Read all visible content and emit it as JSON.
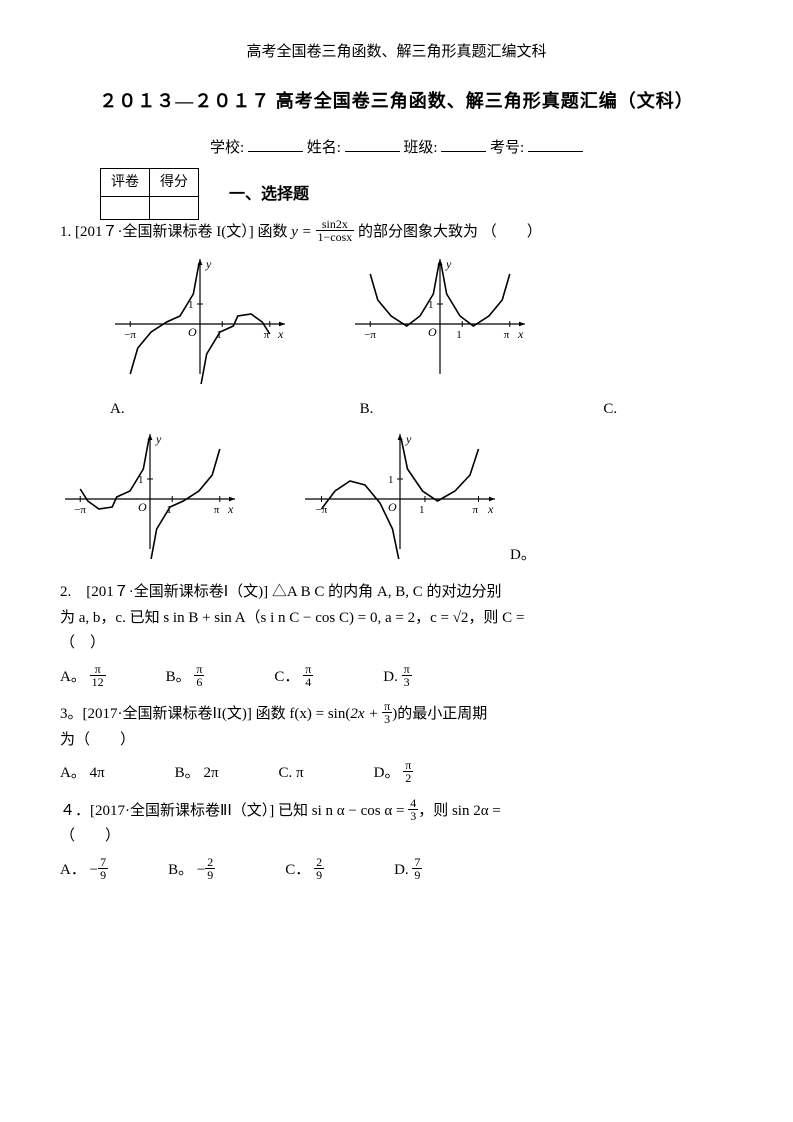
{
  "header": "高考全国卷三角函数、解三角形真题汇编文科",
  "main_title": "２０１３—２０１７ 高考全国卷三角函数、解三角形真题汇编（文科）",
  "info_line": {
    "school": "学校:",
    "name": "姓名:",
    "class": "班级:",
    "id": "考号:"
  },
  "grade_table": {
    "col1": "评卷",
    "col2": "得分"
  },
  "section1": "一、选择题",
  "q1": {
    "source_prefix": "1. [201７·全国新课标卷 I(文）] 函数",
    "func": "y = ",
    "frac": {
      "num": "sin2x",
      "den": "1−cosx"
    },
    "suffix": "的部分图象大致为  （　　）",
    "optA": "A.",
    "optB": "B.",
    "optC": "C.",
    "optD": "D。",
    "charts": {
      "type": "function_graph",
      "xlim": [
        -3.6,
        3.6
      ],
      "ylim": [
        -2,
        3
      ],
      "xticks": [
        {
          "v": -3.14,
          "l": "−π"
        },
        {
          "v": 1,
          "l": "1"
        },
        {
          "v": 3.14,
          "l": "π"
        }
      ],
      "origin_label": "O",
      "ylabel": "y",
      "xlabel": "x",
      "line_color": "#000000",
      "line_width": 1.6,
      "axis_color": "#000000",
      "bg": "#ffffff",
      "A": [
        [
          -3.14,
          -2.5
        ],
        [
          -2.8,
          -1.2
        ],
        [
          -2.2,
          -0.4
        ],
        [
          -1.5,
          0.1
        ],
        [
          -0.9,
          0.4
        ],
        [
          -0.3,
          1.5
        ],
        [
          -0.05,
          3
        ],
        [
          0.05,
          -3
        ],
        [
          0.3,
          -1.5
        ],
        [
          0.9,
          -0.4
        ],
        [
          1.5,
          -0.1
        ],
        [
          1.7,
          0.4
        ],
        [
          2.3,
          0.5
        ],
        [
          2.8,
          0.1
        ],
        [
          3.14,
          -0.5
        ]
      ],
      "B": [
        [
          -3.14,
          2.5
        ],
        [
          -2.8,
          1.2
        ],
        [
          -2.2,
          0.4
        ],
        [
          -1.5,
          -0.1
        ],
        [
          -0.9,
          0.4
        ],
        [
          -0.3,
          1.5
        ],
        [
          -0.05,
          3
        ],
        [
          0.05,
          3
        ],
        [
          0.3,
          1.5
        ],
        [
          0.9,
          0.4
        ],
        [
          1.5,
          -0.1
        ],
        [
          2.2,
          0.4
        ],
        [
          2.8,
          1.2
        ],
        [
          3.14,
          2.5
        ]
      ],
      "C": [
        [
          -3.14,
          0.5
        ],
        [
          -2.8,
          -0.1
        ],
        [
          -2.3,
          -0.5
        ],
        [
          -1.7,
          -0.4
        ],
        [
          -1.5,
          0.1
        ],
        [
          -0.9,
          0.4
        ],
        [
          -0.3,
          1.5
        ],
        [
          -0.05,
          3
        ],
        [
          0.05,
          -3
        ],
        [
          0.3,
          -1.5
        ],
        [
          0.9,
          -0.4
        ],
        [
          1.5,
          -0.1
        ],
        [
          2.2,
          0.4
        ],
        [
          2.8,
          1.2
        ],
        [
          3.14,
          2.5
        ]
      ],
      "D": [
        [
          -3.14,
          -0.5
        ],
        [
          -2.6,
          0.4
        ],
        [
          -2.0,
          0.9
        ],
        [
          -1.4,
          0.7
        ],
        [
          -0.8,
          -0.2
        ],
        [
          -0.3,
          -1.5
        ],
        [
          -0.05,
          -3
        ],
        [
          0.05,
          3
        ],
        [
          0.3,
          1.5
        ],
        [
          0.9,
          0.4
        ],
        [
          1.5,
          -0.1
        ],
        [
          2.2,
          0.4
        ],
        [
          2.8,
          1.2
        ],
        [
          3.14,
          2.5
        ]
      ]
    }
  },
  "q2": {
    "line1": "2.　[201７·全国新课标卷Ⅰ（文)] △A B C 的内角 A, B, C 的对边分别",
    "line2_prefix": "为 a, b，c. 已知 s in B + sin A（s i n C − cos C) = 0, a = 2，c = √2，则 C =",
    "paren": "（　）",
    "options": {
      "A": {
        "label": "A。",
        "num": "π",
        "den": "12"
      },
      "B": {
        "label": "B。",
        "num": "π",
        "den": "6"
      },
      "C": {
        "label": "C．",
        "num": "π",
        "den": "4"
      },
      "D": {
        "label": "D.",
        "num": "π",
        "den": "3"
      }
    }
  },
  "q3": {
    "prefix": "3。[2017·全国新课标卷ⅠI(文)] 函数 f(x) = sin",
    "inner": "2x + ",
    "frac": {
      "num": "π",
      "den": "3"
    },
    "suffix": "的最小正周期",
    "line2": "为（　　）",
    "options": {
      "A": {
        "label": "A。",
        "val": "4π"
      },
      "B": {
        "label": "B。",
        "val": "2π"
      },
      "C": {
        "label": "C.",
        "val": "π"
      },
      "D": {
        "label": "D。",
        "num": "π",
        "den": "2"
      }
    }
  },
  "q4": {
    "prefix": "４．[2017·全国新课标卷ⅡⅠ（文）] 已知 si n α − cos α = ",
    "frac1": {
      "num": "4",
      "den": "3"
    },
    "mid": "，则 sin 2α =",
    "paren": "（　　）",
    "options": {
      "A": {
        "label": "A．",
        "sign": "−",
        "num": "7",
        "den": "9"
      },
      "B": {
        "label": "B。",
        "sign": "−",
        "num": "2",
        "den": "9"
      },
      "C": {
        "label": "C．",
        "sign": "",
        "num": "2",
        "den": "9"
      },
      "D": {
        "label": "D.",
        "sign": "",
        "num": "7",
        "den": "9"
      }
    }
  }
}
